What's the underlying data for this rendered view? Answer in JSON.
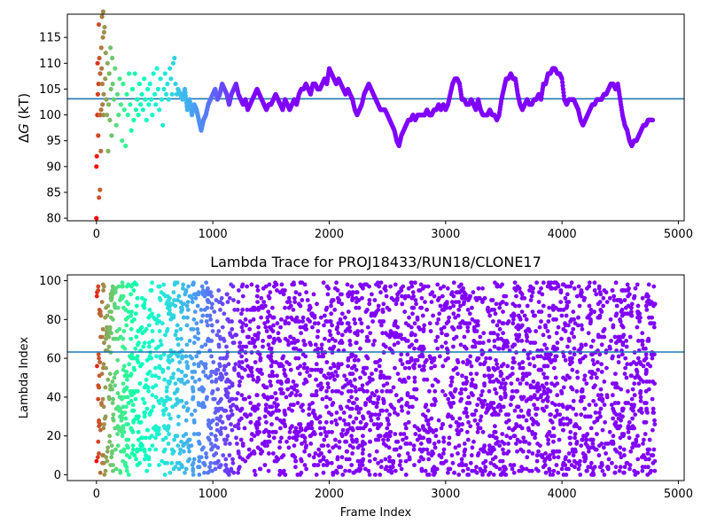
{
  "chart_data": [
    {
      "type": "scatter",
      "title": "",
      "xlabel": "",
      "ylabel": "ΔG (kT)",
      "ylabel_symbol": "Δ",
      "ylabel_var": "G",
      "ylabel_unit": " (kT)",
      "xlim": [
        -250,
        5050
      ],
      "ylim": [
        79.5,
        119.5
      ],
      "xticks": [
        0,
        1000,
        2000,
        3000,
        4000,
        5000
      ],
      "yticks": [
        80,
        85,
        90,
        95,
        100,
        105,
        110,
        115
      ],
      "hline": {
        "y": 103,
        "color": "#1f77b4"
      },
      "colormap": "rainbow (later frames violet)",
      "grid": false,
      "legend": "none",
      "points": [
        [
          0,
          80
        ],
        [
          0,
          90
        ],
        [
          3,
          92
        ],
        [
          8,
          100
        ],
        [
          10,
          110
        ],
        [
          12,
          104
        ],
        [
          15,
          96
        ],
        [
          18,
          106
        ],
        [
          20,
          117.5
        ],
        [
          22,
          84
        ],
        [
          25,
          111
        ],
        [
          28,
          100
        ],
        [
          30,
          85.5
        ],
        [
          32,
          108
        ],
        [
          35,
          100
        ],
        [
          38,
          93
        ],
        [
          40,
          101
        ],
        [
          42,
          113
        ],
        [
          45,
          109
        ],
        [
          48,
          119
        ],
        [
          50,
          106
        ],
        [
          52,
          102
        ],
        [
          55,
          115
        ],
        [
          58,
          120
        ],
        [
          60,
          100
        ],
        [
          62,
          104
        ],
        [
          65,
          116
        ],
        [
          70,
          117
        ],
        [
          75,
          107
        ],
        [
          80,
          112
        ],
        [
          85,
          103
        ],
        [
          90,
          100
        ],
        [
          95,
          110
        ],
        [
          100,
          93
        ],
        [
          105,
          102
        ],
        [
          110,
          108
        ],
        [
          115,
          99
        ],
        [
          120,
          113
        ],
        [
          125,
          105
        ],
        [
          130,
          96
        ],
        [
          135,
          111
        ],
        [
          140,
          106
        ],
        [
          150,
          103
        ],
        [
          160,
          109
        ],
        [
          170,
          98
        ],
        [
          180,
          104
        ],
        [
          190,
          100
        ],
        [
          200,
          107
        ],
        [
          210,
          102
        ],
        [
          220,
          95
        ],
        [
          230,
          106
        ],
        [
          240,
          101
        ],
        [
          250,
          94
        ],
        [
          260,
          104
        ],
        [
          270,
          100
        ],
        [
          280,
          108
        ],
        [
          290,
          102
        ],
        [
          300,
          97
        ],
        [
          310,
          105
        ],
        [
          320,
          99
        ],
        [
          330,
          108
        ],
        [
          340,
          101
        ],
        [
          350,
          103
        ],
        [
          360,
          100
        ],
        [
          370,
          106
        ],
        [
          380,
          102
        ],
        [
          390,
          104
        ],
        [
          400,
          101
        ],
        [
          410,
          107
        ],
        [
          420,
          103
        ],
        [
          430,
          99
        ],
        [
          440,
          105
        ],
        [
          450,
          102
        ],
        [
          460,
          106
        ],
        [
          470,
          103
        ],
        [
          480,
          100
        ],
        [
          490,
          108
        ],
        [
          500,
          104
        ],
        [
          510,
          102
        ],
        [
          520,
          109
        ],
        [
          530,
          105
        ],
        [
          540,
          101
        ],
        [
          550,
          107
        ],
        [
          560,
          103
        ],
        [
          570,
          98
        ],
        [
          580,
          105
        ],
        [
          590,
          108
        ],
        [
          600,
          104
        ],
        [
          610,
          106
        ],
        [
          620,
          103
        ],
        [
          630,
          109
        ],
        [
          640,
          107
        ],
        [
          650,
          104
        ],
        [
          660,
          110
        ],
        [
          670,
          111
        ],
        [
          680,
          106
        ],
        [
          690,
          104
        ],
        [
          700,
          105
        ],
        [
          720,
          104
        ],
        [
          740,
          103
        ],
        [
          760,
          105
        ],
        [
          780,
          101
        ],
        [
          800,
          103
        ],
        [
          820,
          100
        ],
        [
          840,
          102
        ],
        [
          860,
          101
        ],
        [
          880,
          99
        ],
        [
          900,
          97
        ],
        [
          920,
          99
        ],
        [
          940,
          100
        ],
        [
          960,
          102
        ],
        [
          980,
          103
        ],
        [
          1000,
          104
        ],
        [
          1020,
          105
        ],
        [
          1040,
          103
        ],
        [
          1060,
          104
        ],
        [
          1080,
          106
        ],
        [
          1100,
          105
        ],
        [
          1120,
          104
        ],
        [
          1140,
          102
        ],
        [
          1160,
          104
        ],
        [
          1180,
          105
        ],
        [
          1200,
          106
        ],
        [
          1220,
          104
        ],
        [
          1240,
          103
        ],
        [
          1260,
          102
        ],
        [
          1280,
          103
        ],
        [
          1300,
          101
        ],
        [
          1320,
          102
        ],
        [
          1340,
          103
        ],
        [
          1360,
          104
        ],
        [
          1380,
          105
        ],
        [
          1400,
          104
        ],
        [
          1420,
          103
        ],
        [
          1440,
          102
        ],
        [
          1460,
          101
        ],
        [
          1480,
          102
        ],
        [
          1500,
          102
        ],
        [
          1520,
          103
        ],
        [
          1540,
          104
        ],
        [
          1560,
          103
        ],
        [
          1580,
          102
        ],
        [
          1600,
          101
        ],
        [
          1620,
          103
        ],
        [
          1640,
          102
        ],
        [
          1660,
          101
        ],
        [
          1680,
          102
        ],
        [
          1700,
          103
        ],
        [
          1720,
          102
        ],
        [
          1740,
          104
        ],
        [
          1760,
          105
        ],
        [
          1780,
          105
        ],
        [
          1800,
          106
        ],
        [
          1820,
          105
        ],
        [
          1840,
          104
        ],
        [
          1860,
          106
        ],
        [
          1880,
          106
        ],
        [
          1900,
          105
        ],
        [
          1920,
          105
        ],
        [
          1940,
          106
        ],
        [
          1960,
          107
        ],
        [
          1980,
          106
        ],
        [
          2000,
          109
        ],
        [
          2020,
          108
        ],
        [
          2040,
          107
        ],
        [
          2060,
          106
        ],
        [
          2080,
          107
        ],
        [
          2100,
          106
        ],
        [
          2120,
          105
        ],
        [
          2140,
          104
        ],
        [
          2160,
          105
        ],
        [
          2180,
          104
        ],
        [
          2200,
          103
        ],
        [
          2220,
          101
        ],
        [
          2240,
          100
        ],
        [
          2260,
          101
        ],
        [
          2280,
          102
        ],
        [
          2300,
          104
        ],
        [
          2320,
          105
        ],
        [
          2340,
          106
        ],
        [
          2360,
          105
        ],
        [
          2380,
          104
        ],
        [
          2400,
          103
        ],
        [
          2420,
          102
        ],
        [
          2440,
          101
        ],
        [
          2460,
          101
        ],
        [
          2480,
          101
        ],
        [
          2500,
          100
        ],
        [
          2520,
          99
        ],
        [
          2540,
          98
        ],
        [
          2560,
          97
        ],
        [
          2580,
          95
        ],
        [
          2600,
          94
        ],
        [
          2620,
          96
        ],
        [
          2640,
          97
        ],
        [
          2660,
          98
        ],
        [
          2680,
          99
        ],
        [
          2700,
          99
        ],
        [
          2720,
          100
        ],
        [
          2740,
          99
        ],
        [
          2760,
          100
        ],
        [
          2780,
          100
        ],
        [
          2800,
          100
        ],
        [
          2820,
          100
        ],
        [
          2840,
          101
        ],
        [
          2860,
          100
        ],
        [
          2880,
          100
        ],
        [
          2900,
          101
        ],
        [
          2920,
          101
        ],
        [
          2940,
          102
        ],
        [
          2960,
          101
        ],
        [
          2980,
          102
        ],
        [
          3000,
          101
        ],
        [
          3020,
          102
        ],
        [
          3040,
          104
        ],
        [
          3060,
          106
        ],
        [
          3080,
          107
        ],
        [
          3100,
          107
        ],
        [
          3120,
          106
        ],
        [
          3140,
          103
        ],
        [
          3160,
          103
        ],
        [
          3180,
          102
        ],
        [
          3200,
          102
        ],
        [
          3220,
          103
        ],
        [
          3240,
          102
        ],
        [
          3260,
          101
        ],
        [
          3280,
          103
        ],
        [
          3300,
          101
        ],
        [
          3320,
          100
        ],
        [
          3340,
          100
        ],
        [
          3360,
          100
        ],
        [
          3380,
          101
        ],
        [
          3400,
          100
        ],
        [
          3420,
          100
        ],
        [
          3440,
          99
        ],
        [
          3460,
          100
        ],
        [
          3480,
          103
        ],
        [
          3500,
          105
        ],
        [
          3520,
          107
        ],
        [
          3540,
          107
        ],
        [
          3560,
          108
        ],
        [
          3580,
          107
        ],
        [
          3600,
          107
        ],
        [
          3620,
          104
        ],
        [
          3640,
          102
        ],
        [
          3660,
          101
        ],
        [
          3680,
          102
        ],
        [
          3700,
          103
        ],
        [
          3720,
          102
        ],
        [
          3740,
          102
        ],
        [
          3760,
          103
        ],
        [
          3780,
          103
        ],
        [
          3800,
          104
        ],
        [
          3820,
          103
        ],
        [
          3840,
          106
        ],
        [
          3860,
          106
        ],
        [
          3880,
          108
        ],
        [
          3900,
          108
        ],
        [
          3920,
          109
        ],
        [
          3940,
          109
        ],
        [
          3960,
          108
        ],
        [
          3980,
          108
        ],
        [
          4000,
          107
        ],
        [
          4020,
          103
        ],
        [
          4040,
          102
        ],
        [
          4060,
          103
        ],
        [
          4080,
          103
        ],
        [
          4100,
          103
        ],
        [
          4120,
          102
        ],
        [
          4140,
          101
        ],
        [
          4160,
          99
        ],
        [
          4180,
          98
        ],
        [
          4200,
          99
        ],
        [
          4220,
          100
        ],
        [
          4240,
          101
        ],
        [
          4260,
          102
        ],
        [
          4280,
          102
        ],
        [
          4300,
          103
        ],
        [
          4320,
          103
        ],
        [
          4340,
          103
        ],
        [
          4360,
          104
        ],
        [
          4380,
          104
        ],
        [
          4400,
          105
        ],
        [
          4420,
          106
        ],
        [
          4440,
          106
        ],
        [
          4460,
          105
        ],
        [
          4480,
          106
        ],
        [
          4500,
          103
        ],
        [
          4520,
          100
        ],
        [
          4540,
          98
        ],
        [
          4560,
          97
        ],
        [
          4580,
          95
        ],
        [
          4600,
          94
        ],
        [
          4620,
          95
        ],
        [
          4640,
          95
        ],
        [
          4660,
          96
        ],
        [
          4680,
          97
        ],
        [
          4700,
          98
        ],
        [
          4720,
          98
        ],
        [
          4740,
          99
        ],
        [
          4760,
          99
        ],
        [
          4780,
          99
        ]
      ]
    },
    {
      "type": "scatter",
      "title": "Lambda Trace for PROJ18433/RUN18/CLONE17",
      "xlabel": "Frame Index",
      "ylabel": "Lambda Index",
      "xlim": [
        -250,
        5050
      ],
      "ylim": [
        -3,
        103
      ],
      "xticks": [
        0,
        1000,
        2000,
        3000,
        4000,
        5000
      ],
      "yticks": [
        0,
        20,
        40,
        60,
        80,
        100
      ],
      "hline": {
        "y": 63,
        "color": "#1f77b4"
      },
      "colormap": "rainbow (later frames violet)",
      "grid": false,
      "legend": "none",
      "frame_range": [
        0,
        4800
      ],
      "lambda_range": [
        0,
        99
      ],
      "approx_point_count": 3600,
      "pattern": "dense uniformly scattered lambda visits across 0-99 at every frame"
    }
  ]
}
